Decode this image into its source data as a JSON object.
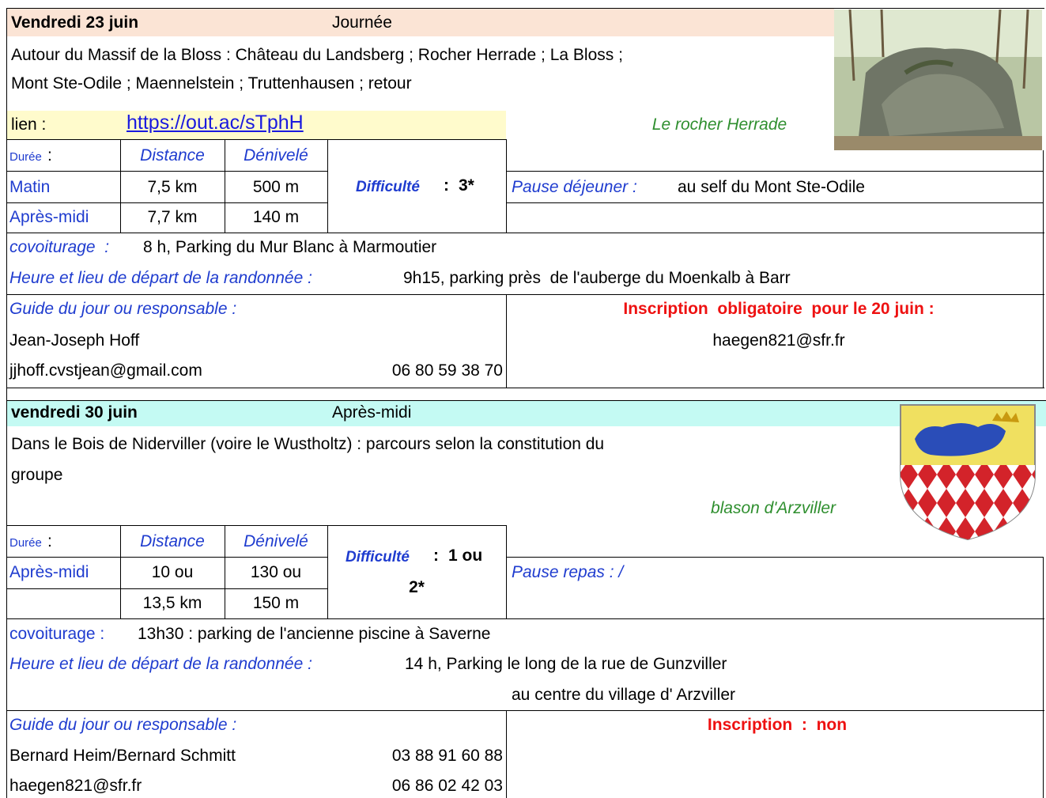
{
  "sections": [
    {
      "date": "Vendredi 23 juin",
      "period": "Journée",
      "description": [
        "Autour du Massif de la Bloss : Château du Landsberg ; Rocher Herrade ; La Bloss ;",
        "Mont Ste-Odile ; Maennelstein ; Truttenhausen ; retour"
      ],
      "link_label": "lien :",
      "link": "https://out.ac/sTphH",
      "image_caption": "Le rocher Herrade",
      "table": {
        "duration_label": "Durée",
        "duration_sep": ":",
        "distance": "Distance",
        "elevation": "Dénivelé",
        "rows": [
          [
            "Matin",
            "7,5 km",
            "500 m"
          ],
          [
            "Après-midi",
            "7,7 km",
            "140 m"
          ]
        ]
      },
      "difficulty": {
        "label": "Difficulté",
        "sep": ":",
        "value": [
          "3*"
        ]
      },
      "pause": {
        "label": "Pause déjeuner :",
        "value": "au self du Mont Ste-Odile"
      },
      "carpool": {
        "label": "covoiturage  :",
        "value": "8 h, Parking du Mur Blanc à Marmoutier"
      },
      "departure": {
        "label": "Heure et lieu de départ de la randonnée :",
        "value": [
          "9h15, parking près  de l'auberge du Moenkalb à Barr"
        ]
      },
      "guide": {
        "label": "Guide du jour ou responsable :",
        "lines": [
          [
            "Jean-Joseph Hoff"
          ],
          [
            "jjhoff.cvstjean@gmail.com",
            "06 80 59 38 70"
          ]
        ]
      },
      "registration": {
        "label": "Inscription  obligatoire  pour le 20 juin :",
        "contact": "haegen821@sfr.fr"
      }
    },
    {
      "date": "vendredi 30 juin",
      "period": "Après-midi",
      "description": [
        "Dans le Bois de Niderviller (voire le Wustholtz) : parcours selon la constitution du",
        "groupe"
      ],
      "image_caption": "blason d'Arzviller",
      "table": {
        "duration_label": "Durée",
        "duration_sep": ":",
        "distance": "Distance",
        "elevation": "Dénivelé",
        "rows": [
          [
            "Après-midi",
            "10 ou",
            "130 ou"
          ],
          [
            "13,5 km",
            "150 m"
          ]
        ]
      },
      "difficulty": {
        "label": "Difficulté",
        "sep": ":",
        "value": [
          "1 ou",
          "2*"
        ]
      },
      "pause": {
        "label": "Pause repas : /"
      },
      "carpool": {
        "label": "covoiturage :",
        "value": "13h30 : parking de l'ancienne piscine à Saverne"
      },
      "departure": {
        "label": "Heure et lieu de départ de la randonnée :",
        "value": [
          "14 h, Parking le long de la rue de Gunzviller",
          "au centre du village d' Arzviller"
        ]
      },
      "guide": {
        "label": "Guide du jour ou responsable :",
        "lines": [
          [
            "Bernard Heim/Bernard Schmitt",
            "03 88 91 60 88"
          ],
          [
            "haegen821@sfr.fr",
            "06 86 02 42 03"
          ]
        ]
      },
      "registration": {
        "label": "Inscription  :  non"
      }
    }
  ]
}
